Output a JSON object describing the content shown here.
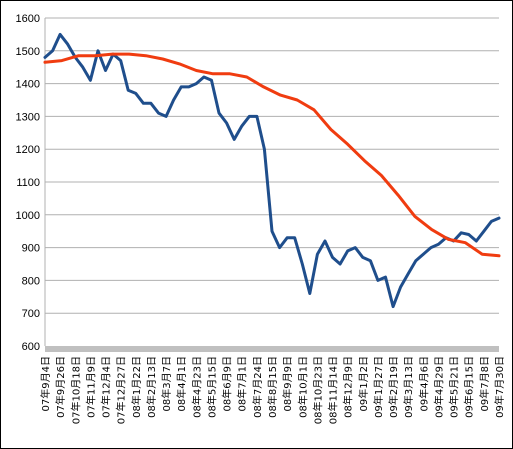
{
  "chart_data": {
    "type": "line",
    "title": "",
    "xlabel": "",
    "ylabel": "",
    "ylim": [
      600,
      1600
    ],
    "yticks": [
      600,
      700,
      800,
      900,
      1000,
      1100,
      1200,
      1300,
      1400,
      1500,
      1600
    ],
    "grid": "horizontal",
    "legend": "none",
    "x_ticks": [
      "07年9月4日",
      "07年9月26日",
      "07年10月18日",
      "07年11月9日",
      "07年12月4日",
      "07年12月27日",
      "08年1月22日",
      "08年2月13日",
      "08年3月7日",
      "08年4月1日",
      "08年4月23日",
      "08年5月15日",
      "08年6月9日",
      "08年7月1日",
      "08年7月24日",
      "08年8月15日",
      "08年9月9日",
      "08年10月1日",
      "08年10月23日",
      "08年11月14日",
      "08年12月9日",
      "09年1月2日",
      "09年1月27日",
      "09年2月19日",
      "09年3月13日",
      "09年4月6日",
      "09年4月29日",
      "09年5月21日",
      "09年6月15日",
      "09年7月8日",
      "09年7月30日"
    ],
    "series": [
      {
        "color": "#1f4e8c",
        "values": [
          1480,
          1500,
          1550,
          1520,
          1480,
          1450,
          1410,
          1500,
          1440,
          1490,
          1470,
          1380,
          1370,
          1340,
          1340,
          1310,
          1300,
          1350,
          1390,
          1390,
          1400,
          1420,
          1410,
          1310,
          1280,
          1230,
          1270,
          1300,
          1300,
          1200,
          950,
          900,
          930,
          930,
          850,
          760,
          880,
          920,
          870,
          850,
          890,
          900,
          870,
          860,
          800,
          810,
          720,
          780,
          820,
          860,
          880,
          900,
          910,
          930,
          920,
          945,
          940,
          920,
          950,
          980,
          990
        ]
      },
      {
        "color": "#f03c10",
        "values": [
          1465,
          1470,
          1485,
          1485,
          1490,
          1490,
          1485,
          1475,
          1460,
          1440,
          1430,
          1430,
          1420,
          1390,
          1365,
          1350,
          1320,
          1260,
          1215,
          1165,
          1120,
          1060,
          995,
          955,
          925,
          915,
          880,
          875
        ]
      }
    ]
  }
}
